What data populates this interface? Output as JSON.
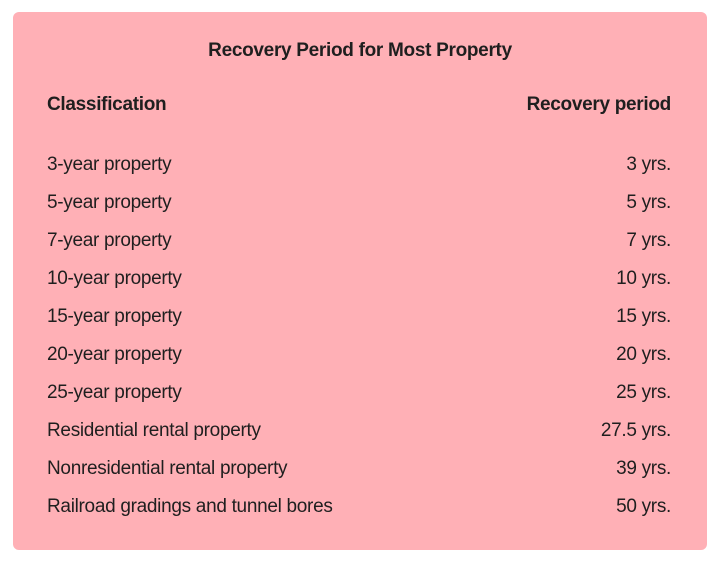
{
  "table": {
    "title": "Recovery Period for Most Property",
    "headers": [
      "Classification",
      "Recovery period"
    ],
    "rows": [
      [
        "3-year property",
        "3 yrs."
      ],
      [
        "5-year property",
        "5 yrs."
      ],
      [
        "7-year property",
        "7 yrs."
      ],
      [
        "10-year property",
        "10 yrs."
      ],
      [
        "15-year property",
        "15 yrs."
      ],
      [
        "20-year property",
        "20 yrs."
      ],
      [
        "25-year property",
        "25 yrs."
      ],
      [
        "Residential rental property",
        "27.5 yrs."
      ],
      [
        "Nonresidential rental property",
        "39 yrs."
      ],
      [
        "Railroad gradings and tunnel bores",
        "50 yrs."
      ]
    ],
    "background_color": "#ffb0b6"
  }
}
